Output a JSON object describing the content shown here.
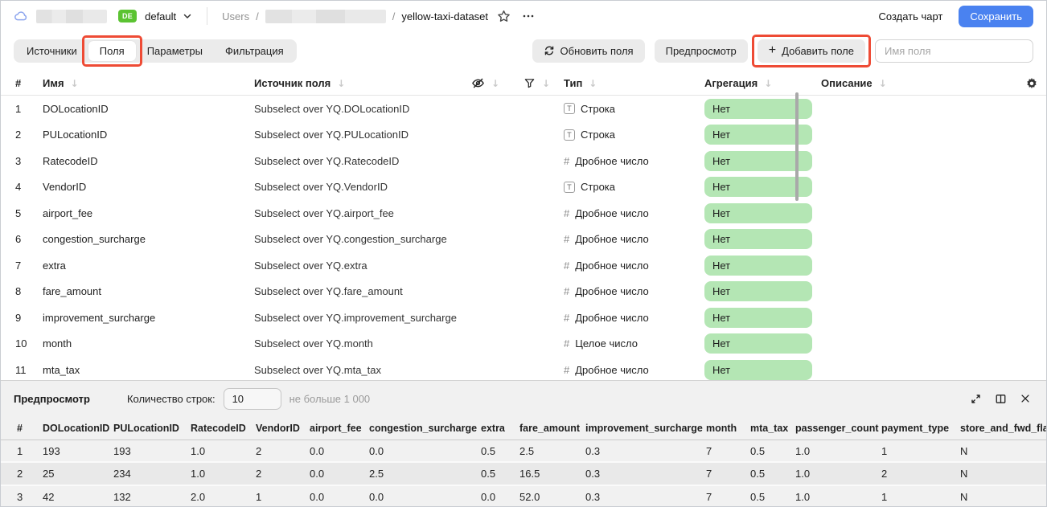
{
  "colors": {
    "accent_blue": "#4a82f0",
    "badge_green": "#5bc332",
    "pill_green": "#b4e6b4",
    "annotation_red": "#ee4b35"
  },
  "header": {
    "env_badge": "DE",
    "env_name": "default",
    "breadcrumb_root": "Users",
    "breadcrumb_separator": "/",
    "dataset_name": "yellow-taxi-dataset",
    "create_chart_label": "Создать чарт",
    "save_label": "Сохранить"
  },
  "toolbar": {
    "tabs": [
      {
        "label": "Источники",
        "selected": false,
        "annotated": false
      },
      {
        "label": "Поля",
        "selected": true,
        "annotated": true
      },
      {
        "label": "Параметры",
        "selected": false,
        "annotated": false
      },
      {
        "label": "Фильтрация",
        "selected": false,
        "annotated": false
      }
    ],
    "refresh_label": "Обновить поля",
    "preview_label": "Предпросмотр",
    "add_field_label": "Добавить поле",
    "add_field_plus": "+",
    "field_name_placeholder": "Имя поля"
  },
  "fields_table": {
    "columns": {
      "index": "#",
      "name": "Имя",
      "source": "Источник поля",
      "type": "Тип",
      "aggregation": "Агрегация",
      "description": "Описание"
    },
    "string_icon_glyph": "T",
    "number_icon_glyph": "#",
    "rows": [
      {
        "index": "1",
        "name": "DOLocationID",
        "source": "Subselect over YQ.DOLocationID",
        "type_kind": "string",
        "type_label": "Строка",
        "aggregation": "Нет"
      },
      {
        "index": "2",
        "name": "PULocationID",
        "source": "Subselect over YQ.PULocationID",
        "type_kind": "string",
        "type_label": "Строка",
        "aggregation": "Нет"
      },
      {
        "index": "3",
        "name": "RatecodeID",
        "source": "Subselect over YQ.RatecodeID",
        "type_kind": "number",
        "type_label": "Дробное число",
        "aggregation": "Нет"
      },
      {
        "index": "4",
        "name": "VendorID",
        "source": "Subselect over YQ.VendorID",
        "type_kind": "string",
        "type_label": "Строка",
        "aggregation": "Нет"
      },
      {
        "index": "5",
        "name": "airport_fee",
        "source": "Subselect over YQ.airport_fee",
        "type_kind": "number",
        "type_label": "Дробное число",
        "aggregation": "Нет"
      },
      {
        "index": "6",
        "name": "congestion_surcharge",
        "source": "Subselect over YQ.congestion_surcharge",
        "type_kind": "number",
        "type_label": "Дробное число",
        "aggregation": "Нет"
      },
      {
        "index": "7",
        "name": "extra",
        "source": "Subselect over YQ.extra",
        "type_kind": "number",
        "type_label": "Дробное число",
        "aggregation": "Нет"
      },
      {
        "index": "8",
        "name": "fare_amount",
        "source": "Subselect over YQ.fare_amount",
        "type_kind": "number",
        "type_label": "Дробное число",
        "aggregation": "Нет"
      },
      {
        "index": "9",
        "name": "improvement_surcharge",
        "source": "Subselect over YQ.improvement_surcharge",
        "type_kind": "number",
        "type_label": "Дробное число",
        "aggregation": "Нет"
      },
      {
        "index": "10",
        "name": "month",
        "source": "Subselect over YQ.month",
        "type_kind": "number",
        "type_label": "Целое число",
        "aggregation": "Нет"
      },
      {
        "index": "11",
        "name": "mta_tax",
        "source": "Subselect over YQ.mta_tax",
        "type_kind": "number",
        "type_label": "Дробное число",
        "aggregation": "Нет"
      }
    ]
  },
  "preview": {
    "title": "Предпросмотр",
    "row_count_label": "Количество строк:",
    "row_count_value": "10",
    "row_count_hint": "не больше 1 000",
    "columns": [
      "#",
      "DOLocationID",
      "PULocationID",
      "RatecodeID",
      "VendorID",
      "airport_fee",
      "congestion_surcharge",
      "extra",
      "fare_amount",
      "improvement_surcharge",
      "month",
      "mta_tax",
      "passenger_count",
      "payment_type",
      "store_and_fwd_flag"
    ],
    "rows": [
      [
        "1",
        "193",
        "193",
        "1.0",
        "2",
        "0.0",
        "0.0",
        "0.5",
        "2.5",
        "0.3",
        "7",
        "0.5",
        "1.0",
        "1",
        "N"
      ],
      [
        "2",
        "25",
        "234",
        "1.0",
        "2",
        "0.0",
        "2.5",
        "0.5",
        "16.5",
        "0.3",
        "7",
        "0.5",
        "1.0",
        "2",
        "N"
      ],
      [
        "3",
        "42",
        "132",
        "2.0",
        "1",
        "0.0",
        "0.0",
        "0.0",
        "52.0",
        "0.3",
        "7",
        "0.5",
        "1.0",
        "1",
        "N"
      ]
    ]
  }
}
